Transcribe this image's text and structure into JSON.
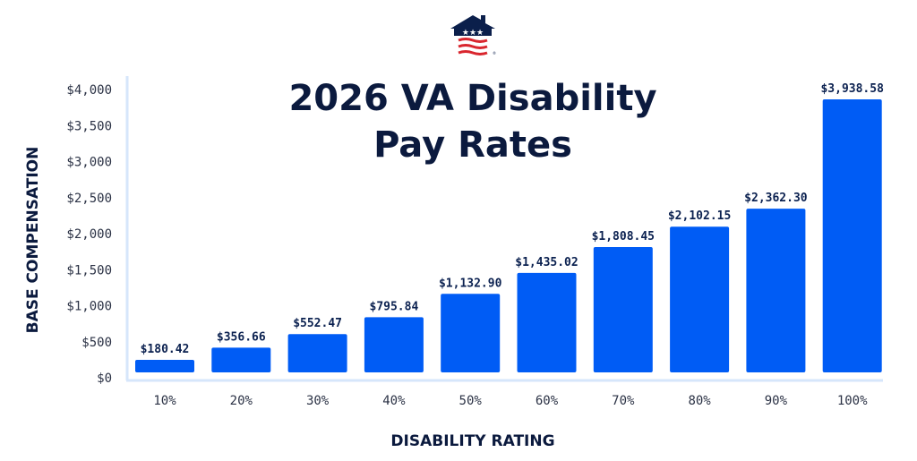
{
  "chart_data": {
    "type": "bar",
    "title_lines": [
      "2026 VA Disability",
      "Pay Rates"
    ],
    "xlabel": "DISABILITY RATING",
    "ylabel": "BASE COMPENSATION",
    "categories": [
      "10%",
      "20%",
      "30%",
      "40%",
      "50%",
      "60%",
      "70%",
      "80%",
      "90%",
      "100%"
    ],
    "values": [
      180.42,
      356.66,
      552.47,
      795.84,
      1132.9,
      1435.02,
      1808.45,
      2102.15,
      2362.3,
      3938.58
    ],
    "data_labels": [
      "$180.42",
      "$356.66",
      "$552.47",
      "$795.84",
      "$1,132.90",
      "$1,435.02",
      "$1,808.45",
      "$2,102.15",
      "$2,362.30",
      "$3,938.58"
    ],
    "yticks": [
      0,
      500,
      1000,
      1500,
      2000,
      2500,
      3000,
      3500,
      4000
    ],
    "ytick_labels": [
      "$0",
      "$500",
      "$1,000",
      "$1,500",
      "$2,000",
      "$2,500",
      "$3,000",
      "$3,500",
      "$4,000"
    ],
    "ylim": [
      0,
      4000
    ],
    "grid": false,
    "colors": {
      "bar": "#005cf5",
      "axis": "#d6e6fb",
      "text": "#0b1a3e"
    }
  },
  "logo": {
    "name": "house-flag-logo",
    "text": "®"
  }
}
